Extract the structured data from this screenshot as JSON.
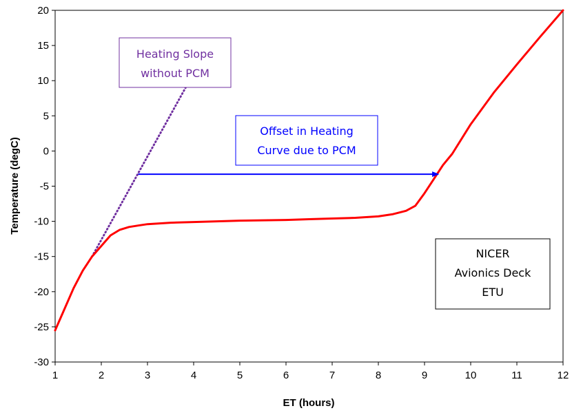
{
  "chart_data": {
    "type": "line",
    "xlabel": "ET (hours)",
    "ylabel": "Temperature (degC)",
    "xlim": [
      1,
      12
    ],
    "ylim": [
      -30,
      20
    ],
    "xticks": [
      1,
      2,
      3,
      4,
      5,
      6,
      7,
      8,
      9,
      10,
      11,
      12
    ],
    "yticks": [
      -30,
      -25,
      -20,
      -15,
      -10,
      -5,
      0,
      5,
      10,
      15,
      20
    ],
    "xtick_labels": [
      "1",
      "2",
      "3",
      "4",
      "5",
      "6",
      "7",
      "8",
      "9",
      "10",
      "11",
      "12"
    ],
    "ytick_labels": [
      "-30",
      "-25",
      "-20",
      "-15",
      "-10",
      "-5",
      "0",
      "5",
      "10",
      "15",
      "20"
    ],
    "grid": false,
    "series": [
      {
        "color": "#ff0000",
        "style": "solid",
        "x": [
          1.0,
          1.2,
          1.4,
          1.6,
          1.8,
          2.0,
          2.2,
          2.4,
          2.6,
          2.8,
          3.0,
          3.5,
          4.0,
          4.5,
          5.0,
          5.5,
          6.0,
          6.5,
          7.0,
          7.5,
          8.0,
          8.3,
          8.6,
          8.8,
          9.0,
          9.2,
          9.4,
          9.6,
          10.0,
          10.5,
          11.0,
          11.5,
          12.0
        ],
        "y": [
          -25.5,
          -22.5,
          -19.5,
          -17.0,
          -15.0,
          -13.5,
          -12.0,
          -11.2,
          -10.8,
          -10.6,
          -10.4,
          -10.2,
          -10.1,
          -10.0,
          -9.9,
          -9.85,
          -9.8,
          -9.7,
          -9.6,
          -9.5,
          -9.3,
          -9.0,
          -8.5,
          -7.8,
          -6.0,
          -4.0,
          -2.0,
          -0.4,
          3.8,
          8.3,
          12.3,
          16.2,
          20.0
        ]
      },
      {
        "color": "#7030a0",
        "style": "dotted",
        "x": [
          1.8,
          3.85
        ],
        "y": [
          -15.0,
          9.3
        ]
      }
    ],
    "annotations": [
      {
        "id": "heating_slope",
        "lines": [
          "Heating Slope",
          "without PCM"
        ],
        "color": "#7030a0"
      },
      {
        "id": "offset",
        "lines": [
          "Offset in Heating",
          "Curve due to PCM"
        ],
        "color": "#0000ff"
      },
      {
        "id": "nicer",
        "lines": [
          "NICER",
          "Avionics Deck",
          "ETU"
        ],
        "color": "#000000"
      }
    ],
    "arrow": {
      "x1": 2.8,
      "x2": 9.3,
      "y": -3.3,
      "color": "#0000ff"
    }
  }
}
